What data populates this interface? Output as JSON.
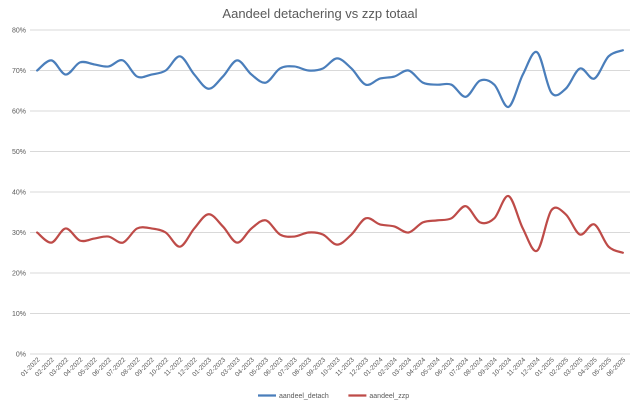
{
  "chart_data": {
    "type": "line",
    "title": "Aandeel detachering vs zzp totaal",
    "xlabel": "",
    "ylabel": "",
    "ylim": [
      0,
      0.8
    ],
    "yticks": [
      "0%",
      "10%",
      "20%",
      "30%",
      "40%",
      "50%",
      "60%",
      "70%",
      "80%"
    ],
    "grid": true,
    "legend_position": "bottom",
    "categories": [
      "01-2022",
      "02-2022",
      "03-2022",
      "04-2022",
      "05-2022",
      "06-2022",
      "07-2022",
      "08-2022",
      "09-2022",
      "10-2022",
      "11-2022",
      "12-2022",
      "01-2023",
      "02-2023",
      "03-2023",
      "04-2023",
      "05-2023",
      "06-2023",
      "07-2023",
      "08-2023",
      "09-2023",
      "10-2023",
      "11-2023",
      "12-2023",
      "01-2024",
      "02-2024",
      "03-2024",
      "04-2024",
      "05-2024",
      "06-2024",
      "07-2024",
      "08-2024",
      "09-2024",
      "10-2024",
      "11-2024",
      "12-2024",
      "01-2025",
      "02-2025",
      "03-2025",
      "04-2025",
      "05-2025",
      "06-2025"
    ],
    "series": [
      {
        "name": "aandeel_detach",
        "color": "#4a7ebb",
        "values": [
          0.7,
          0.725,
          0.69,
          0.72,
          0.715,
          0.71,
          0.725,
          0.685,
          0.69,
          0.7,
          0.735,
          0.69,
          0.655,
          0.685,
          0.725,
          0.69,
          0.67,
          0.705,
          0.71,
          0.7,
          0.705,
          0.73,
          0.705,
          0.665,
          0.68,
          0.685,
          0.7,
          0.67,
          0.665,
          0.665,
          0.635,
          0.675,
          0.665,
          0.61,
          0.69,
          0.745,
          0.645,
          0.655,
          0.705,
          0.68,
          0.735,
          0.75
        ]
      },
      {
        "name": "aandeel_zzp",
        "color": "#be4b48",
        "values": [
          0.3,
          0.275,
          0.31,
          0.28,
          0.285,
          0.29,
          0.275,
          0.31,
          0.31,
          0.3,
          0.265,
          0.31,
          0.345,
          0.315,
          0.275,
          0.31,
          0.33,
          0.295,
          0.29,
          0.3,
          0.295,
          0.27,
          0.295,
          0.335,
          0.32,
          0.315,
          0.3,
          0.325,
          0.33,
          0.335,
          0.365,
          0.325,
          0.335,
          0.39,
          0.31,
          0.255,
          0.355,
          0.345,
          0.295,
          0.32,
          0.265,
          0.25
        ]
      }
    ]
  }
}
